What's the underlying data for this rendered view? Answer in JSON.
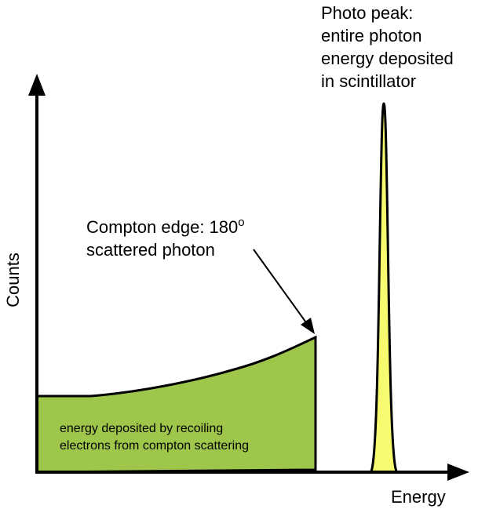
{
  "axes": {
    "y_label": "Counts",
    "x_label": "Energy"
  },
  "photo_peak": {
    "lines": [
      "Photo peak:",
      "entire photon",
      "energy deposited",
      "in scintillator"
    ]
  },
  "compton_edge": {
    "line1": "Compton edge: 180",
    "superscript": "o",
    "line2": "scattered photon"
  },
  "compton_continuum": {
    "lines": [
      "energy deposited by recoiling",
      "electrons from compton scattering"
    ]
  },
  "colors": {
    "continuum_fill": "#9dc64a",
    "peak_fill": "#f5fa6e",
    "ink": "#000000"
  }
}
